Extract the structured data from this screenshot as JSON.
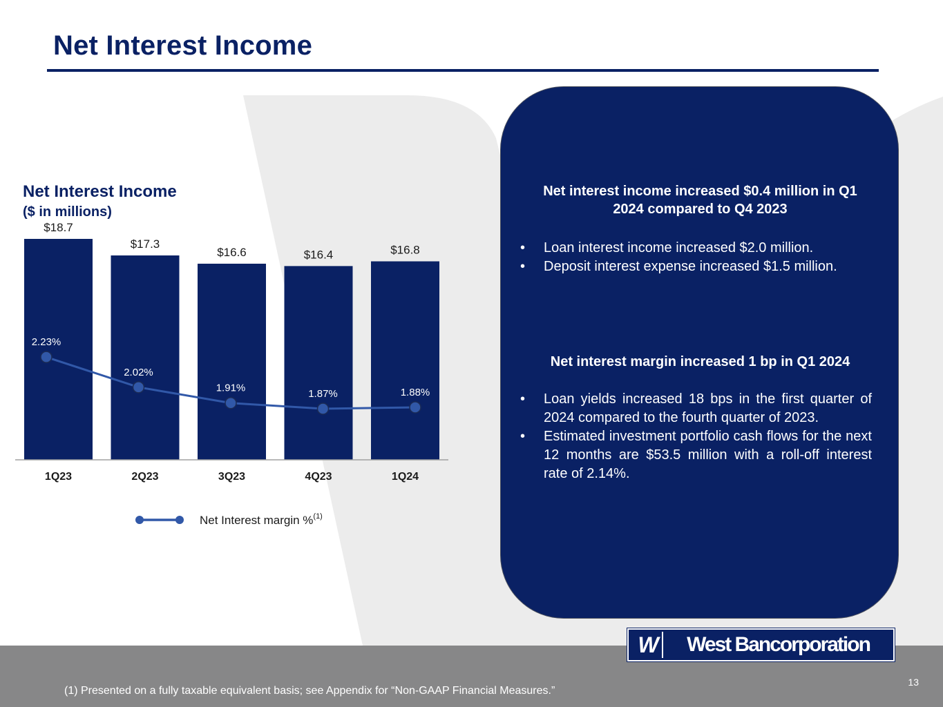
{
  "slide": {
    "title": "Net Interest Income",
    "footnote": "(1) Presented on a fully taxable equivalent basis; see Appendix for “Non-GAAP Financial Measures.”",
    "page_number": "13",
    "logo": {
      "mark": "W",
      "wordmark": "West Bancorporation"
    }
  },
  "colors": {
    "brand_navy": "#0a2164",
    "line_blue": "#3158a8",
    "footer_gray": "#878788",
    "watermark_gray": "#ececec"
  },
  "chart_data": {
    "type": "bar",
    "title": "Net Interest Income",
    "subtitle": "($ in millions)",
    "categories": [
      "1Q23",
      "2Q23",
      "3Q23",
      "4Q23",
      "1Q24"
    ],
    "series": [
      {
        "name": "Net Interest Income",
        "type": "bar",
        "values": [
          18.7,
          17.3,
          16.6,
          16.4,
          16.8
        ],
        "labels": [
          "$18.7",
          "$17.3",
          "$16.6",
          "$16.4",
          "$16.8"
        ]
      },
      {
        "name": "Net Interest margin %",
        "legend_label": "Net Interest margin %",
        "legend_superscript": "(1)",
        "type": "line",
        "values": [
          2.23,
          2.02,
          1.91,
          1.87,
          1.88
        ],
        "labels": [
          "2.23%",
          "2.02%",
          "1.91%",
          "1.87%",
          "1.88%"
        ]
      }
    ],
    "ylim": [
      0,
      18.7
    ],
    "legend": "bottom-center"
  },
  "panel": {
    "heading1": "Net interest income increased $0.4 million in Q1 2024 compared to Q4 2023",
    "bullets1": [
      "Loan interest income increased $2.0 million.",
      "Deposit interest expense increased $1.5 million."
    ],
    "heading2": "Net interest margin increased 1 bp in Q1 2024",
    "bullets2": [
      "Loan yields increased 18 bps in the first quarter of 2024 compared to the fourth quarter of 2023.",
      "Estimated investment portfolio cash flows for the next 12 months are $53.5 million with a roll-off interest rate of 2.14%."
    ],
    "bullet_char": "•"
  }
}
